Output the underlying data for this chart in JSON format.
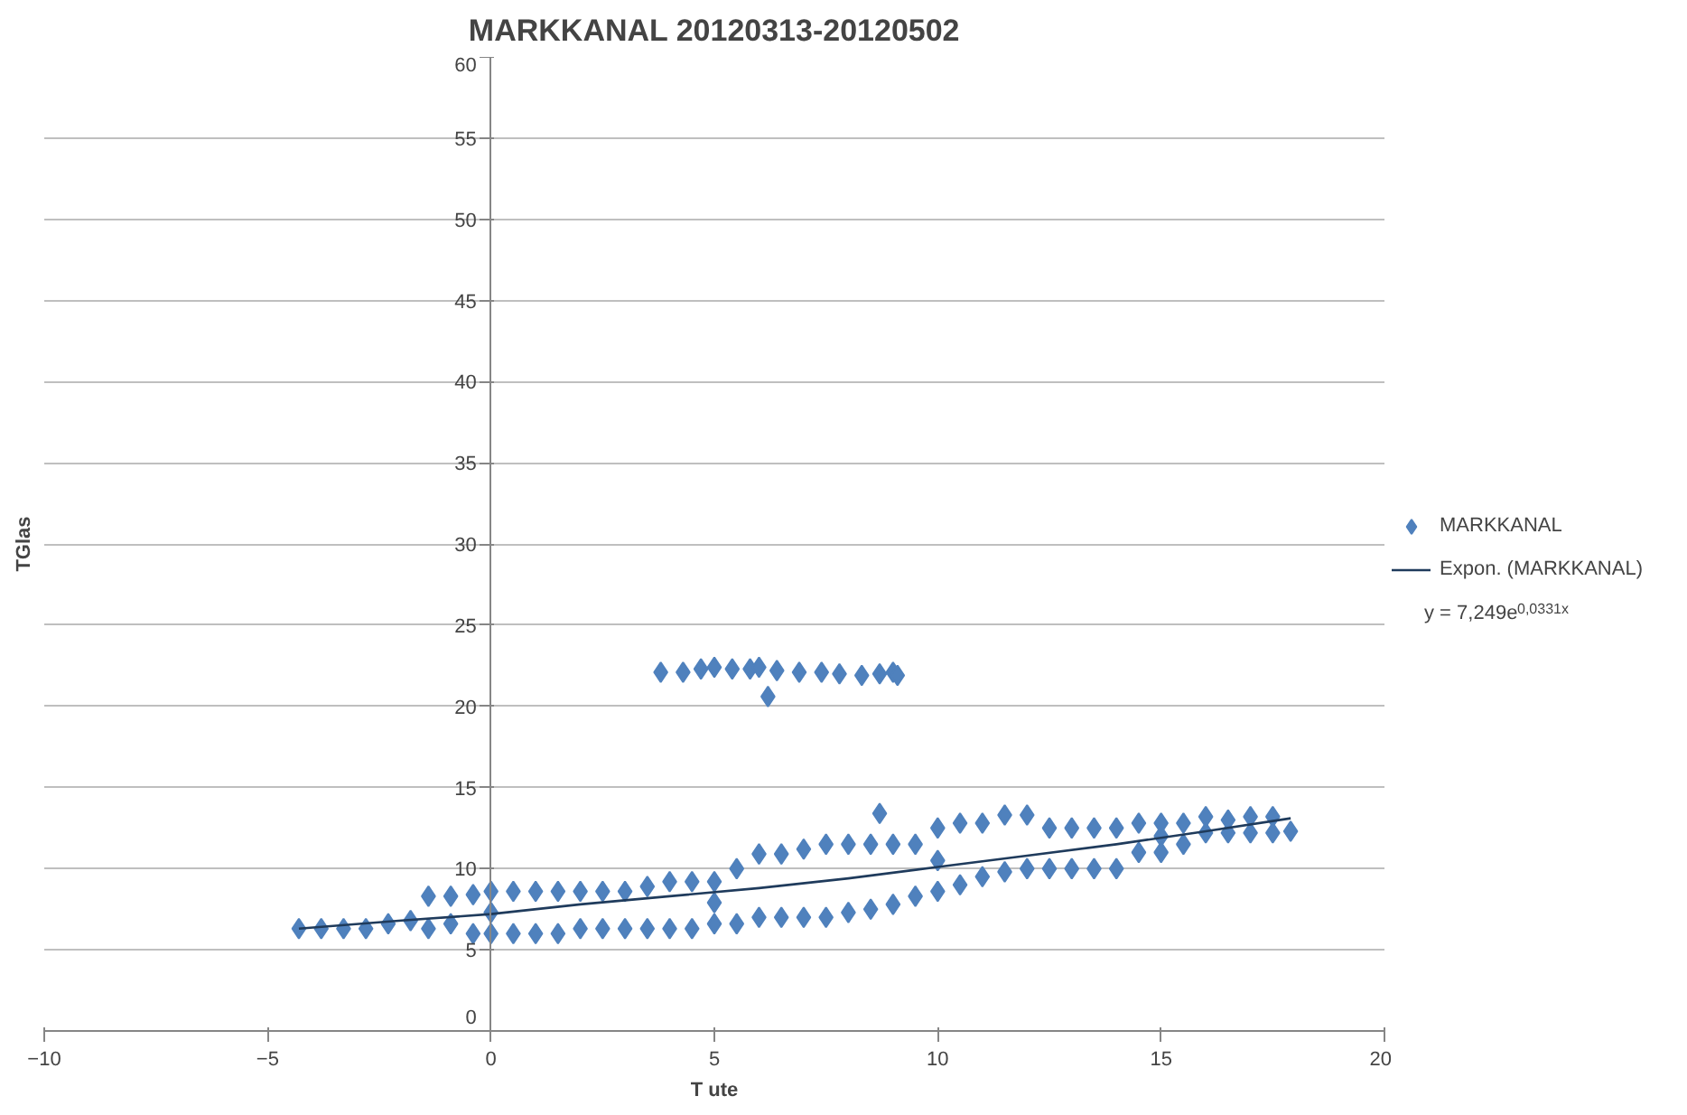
{
  "chart_data": {
    "type": "scatter",
    "title": "MARKKANAL 20120313-20120502",
    "xlabel": "T ute",
    "ylabel": "TGlas",
    "xlim": [
      -10,
      20
    ],
    "xticks": [
      -10,
      -5,
      0,
      5,
      10,
      15,
      20
    ],
    "ylim": [
      0,
      60
    ],
    "yticks": [
      0,
      5,
      10,
      15,
      20,
      25,
      30,
      35,
      40,
      45,
      50,
      55,
      60
    ],
    "grid": "y",
    "legend": "right",
    "marker": "diamond",
    "series": [
      {
        "name": "MARKKANAL",
        "color": "#4f81bd",
        "x": [
          -4.3,
          -3.8,
          -3.3,
          -2.8,
          -2.3,
          -1.8,
          -1.4,
          -1.4,
          -0.9,
          -0.9,
          -0.4,
          -0.4,
          0.0,
          0.0,
          0.0,
          0.5,
          0.5,
          1.0,
          1.0,
          1.5,
          1.5,
          2.0,
          2.0,
          2.5,
          2.5,
          3.0,
          3.0,
          3.5,
          3.5,
          4.0,
          4.0,
          4.5,
          4.5,
          5.0,
          5.0,
          5.0,
          5.5,
          5.5,
          6.0,
          6.0,
          6.5,
          6.5,
          7.0,
          7.0,
          7.5,
          7.5,
          8.0,
          8.0,
          8.5,
          8.5,
          8.7,
          9.0,
          9.0,
          9.5,
          9.5,
          10.0,
          10.0,
          10.0,
          10.5,
          10.5,
          11.0,
          11.0,
          11.5,
          11.5,
          12.0,
          12.0,
          12.5,
          12.5,
          13.0,
          13.0,
          13.5,
          13.5,
          14.0,
          14.0,
          14.5,
          14.5,
          15.0,
          15.0,
          15.0,
          15.5,
          15.5,
          16.0,
          16.0,
          16.5,
          16.5,
          17.0,
          17.0,
          17.5,
          17.5,
          17.9,
          3.8,
          4.3,
          4.7,
          5.0,
          5.4,
          5.8,
          6.0,
          6.2,
          6.4,
          6.9,
          7.4,
          7.8,
          8.3,
          8.7,
          9.0,
          9.1
        ],
        "values": [
          6.3,
          6.3,
          6.3,
          6.3,
          6.6,
          6.8,
          6.3,
          8.3,
          6.6,
          8.3,
          6.0,
          8.4,
          6.0,
          7.3,
          8.6,
          6.0,
          8.6,
          6.0,
          8.6,
          6.0,
          8.6,
          6.3,
          8.6,
          6.3,
          8.6,
          6.3,
          8.6,
          6.3,
          8.9,
          6.3,
          9.2,
          6.3,
          9.2,
          6.6,
          7.9,
          9.2,
          6.6,
          10.0,
          7.0,
          10.9,
          7.0,
          10.9,
          7.0,
          11.2,
          7.0,
          11.5,
          7.3,
          11.5,
          7.5,
          11.5,
          13.4,
          7.8,
          11.5,
          8.3,
          11.5,
          8.6,
          10.5,
          12.5,
          9.0,
          12.8,
          9.5,
          12.8,
          9.8,
          13.3,
          10.0,
          13.3,
          10.0,
          12.5,
          10.0,
          12.5,
          10.0,
          12.5,
          10.0,
          12.5,
          11.0,
          12.8,
          11.0,
          12.0,
          12.8,
          11.5,
          12.8,
          12.2,
          13.2,
          12.2,
          13.0,
          12.2,
          13.2,
          12.2,
          13.2,
          12.3,
          22.1,
          22.1,
          22.3,
          22.4,
          22.3,
          22.3,
          22.4,
          20.6,
          22.2,
          22.1,
          22.1,
          22.0,
          21.9,
          22.0,
          22.1,
          21.9
        ]
      },
      {
        "name": "Expon. (MARKKANAL)",
        "type": "line",
        "marker": "none",
        "line_style": "solid",
        "color": "#1f3b5c",
        "x": [
          -4.3,
          -2,
          0,
          2,
          4,
          6,
          8,
          10,
          12,
          14,
          16,
          17.9
        ],
        "values": [
          6.3,
          6.8,
          7.2,
          7.8,
          8.3,
          8.8,
          9.4,
          10.1,
          10.8,
          11.5,
          12.3,
          13.1
        ]
      }
    ],
    "annotations": [
      "y = 7,249e$^{0,0331x}$"
    ]
  }
}
